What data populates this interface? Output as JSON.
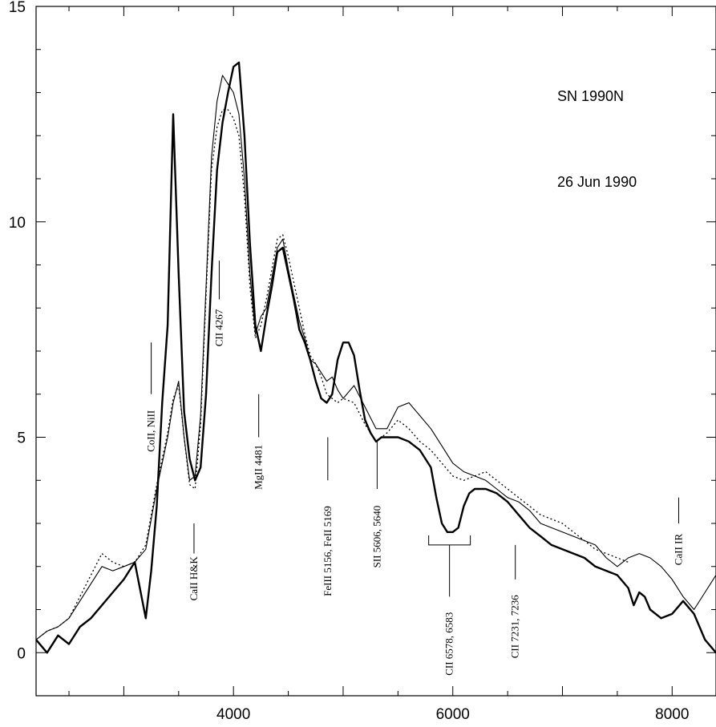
{
  "chart_data": {
    "type": "line",
    "title": "",
    "xlabel": "",
    "ylabel": "",
    "xlim": [
      2200,
      8400
    ],
    "ylim": [
      -1,
      15
    ],
    "x_ticks": [
      4000,
      6000,
      8000
    ],
    "y_ticks": [
      0,
      5,
      10,
      15
    ],
    "grid": false,
    "annotations": [
      "SN 1990N",
      "26 Jun 1990"
    ],
    "series": [
      {
        "style": "thick solid",
        "x": [
          2200,
          2300,
          2400,
          2500,
          2600,
          2700,
          2800,
          2900,
          3000,
          3100,
          3200,
          3250,
          3300,
          3350,
          3400,
          3450,
          3500,
          3550,
          3600,
          3650,
          3700,
          3750,
          3800,
          3850,
          3900,
          3950,
          4000,
          4050,
          4100,
          4150,
          4200,
          4250,
          4300,
          4350,
          4400,
          4450,
          4500,
          4550,
          4600,
          4650,
          4700,
          4750,
          4800,
          4850,
          4900,
          4950,
          5000,
          5050,
          5100,
          5150,
          5200,
          5250,
          5300,
          5350,
          5400,
          5500,
          5600,
          5700,
          5800,
          5850,
          5900,
          5950,
          6000,
          6050,
          6100,
          6150,
          6200,
          6300,
          6400,
          6500,
          6600,
          6700,
          6800,
          6900,
          7000,
          7100,
          7200,
          7300,
          7400,
          7500,
          7600,
          7650,
          7700,
          7750,
          7800,
          7900,
          8000,
          8100,
          8200,
          8300,
          8400
        ],
        "y": [
          0.3,
          0.0,
          0.4,
          0.2,
          0.6,
          0.8,
          1.1,
          1.4,
          1.7,
          2.1,
          0.8,
          1.9,
          3.4,
          5.8,
          7.6,
          12.5,
          8.8,
          5.6,
          4.5,
          4.0,
          4.3,
          6.0,
          8.8,
          11.2,
          12.3,
          13.0,
          13.6,
          13.7,
          12.0,
          9.5,
          7.6,
          7.0,
          7.8,
          8.5,
          9.3,
          9.4,
          8.8,
          8.2,
          7.5,
          7.2,
          6.8,
          6.3,
          5.9,
          5.8,
          6.0,
          6.8,
          7.2,
          7.2,
          6.9,
          6.1,
          5.4,
          5.1,
          4.9,
          5.0,
          5.0,
          5.0,
          4.9,
          4.7,
          4.3,
          3.6,
          3.0,
          2.8,
          2.8,
          2.9,
          3.4,
          3.7,
          3.8,
          3.8,
          3.7,
          3.5,
          3.2,
          2.9,
          2.7,
          2.5,
          2.4,
          2.3,
          2.2,
          2.0,
          1.9,
          1.8,
          1.5,
          1.1,
          1.4,
          1.3,
          1.0,
          0.8,
          0.9,
          1.2,
          0.9,
          0.3,
          0.0
        ]
      },
      {
        "style": "thin solid",
        "x": [
          2200,
          2300,
          2400,
          2500,
          2600,
          2700,
          2800,
          2900,
          3000,
          3100,
          3200,
          3300,
          3400,
          3450,
          3500,
          3550,
          3600,
          3650,
          3700,
          3750,
          3800,
          3850,
          3900,
          3950,
          4000,
          4050,
          4100,
          4150,
          4200,
          4250,
          4300,
          4350,
          4400,
          4450,
          4500,
          4550,
          4600,
          4650,
          4700,
          4750,
          4800,
          4850,
          4900,
          4950,
          5000,
          5100,
          5200,
          5300,
          5400,
          5500,
          5600,
          5700,
          5800,
          5900,
          6000,
          6100,
          6200,
          6300,
          6400,
          6500,
          6600,
          6700,
          6800,
          6900,
          7000,
          7100,
          7200,
          7300,
          7400,
          7500,
          7600,
          7700,
          7800,
          7900,
          8000,
          8100,
          8200,
          8300,
          8400
        ],
        "y": [
          0.3,
          0.5,
          0.6,
          0.8,
          1.2,
          1.6,
          2.0,
          1.9,
          2.0,
          2.1,
          2.4,
          3.8,
          5.0,
          5.8,
          6.3,
          5.0,
          4.0,
          4.1,
          5.5,
          8.5,
          11.5,
          12.8,
          13.4,
          13.2,
          13.0,
          12.5,
          11.0,
          8.8,
          7.4,
          7.8,
          8.0,
          8.7,
          9.4,
          9.6,
          8.9,
          8.3,
          7.7,
          7.3,
          6.8,
          6.7,
          6.5,
          6.3,
          6.4,
          6.1,
          5.9,
          6.2,
          5.7,
          5.2,
          5.2,
          5.7,
          5.8,
          5.5,
          5.2,
          4.8,
          4.4,
          4.2,
          4.1,
          4.0,
          3.8,
          3.6,
          3.5,
          3.3,
          3.0,
          2.9,
          2.8,
          2.7,
          2.6,
          2.5,
          2.2,
          2.0,
          2.2,
          2.3,
          2.2,
          2.0,
          1.7,
          1.3,
          1.0,
          1.4,
          1.8
        ]
      },
      {
        "style": "dotted",
        "x": [
          2200,
          2300,
          2400,
          2500,
          2600,
          2700,
          2800,
          2900,
          3000,
          3100,
          3200,
          3300,
          3400,
          3450,
          3500,
          3550,
          3600,
          3650,
          3700,
          3750,
          3800,
          3850,
          3900,
          3950,
          4000,
          4050,
          4100,
          4150,
          4200,
          4250,
          4300,
          4350,
          4400,
          4450,
          4500,
          4550,
          4600,
          4650,
          4700,
          4750,
          4800,
          4850,
          4900,
          4950,
          5000,
          5100,
          5200,
          5300,
          5400,
          5500,
          5600,
          5700,
          5800,
          5900,
          6000,
          6100,
          6200,
          6300,
          6400,
          6500,
          6600,
          6700,
          6800,
          6900,
          7000,
          7100,
          7200,
          7300,
          7400,
          7500,
          7600
        ],
        "y": [
          0.3,
          0.5,
          0.6,
          0.8,
          1.3,
          1.8,
          2.3,
          2.1,
          2.0,
          2.1,
          2.5,
          3.9,
          5.1,
          5.9,
          6.2,
          5.0,
          3.9,
          3.8,
          5.3,
          8.3,
          11.2,
          12.2,
          12.6,
          12.6,
          12.4,
          12.0,
          10.6,
          8.5,
          7.3,
          7.6,
          8.2,
          8.9,
          9.6,
          9.7,
          9.2,
          8.6,
          8.0,
          7.4,
          6.9,
          6.7,
          6.4,
          6.0,
          5.9,
          5.8,
          5.9,
          5.8,
          5.3,
          4.9,
          5.1,
          5.4,
          5.2,
          4.9,
          4.7,
          4.4,
          4.1,
          4.0,
          4.1,
          4.2,
          4.0,
          3.8,
          3.6,
          3.4,
          3.2,
          3.1,
          3.0,
          2.8,
          2.6,
          2.4,
          2.3,
          2.2,
          2.1
        ]
      }
    ],
    "line_ids": [
      {
        "label": "CoII, NiII",
        "x": 3250,
        "y_top": 7.2,
        "y_bottom": 6.0
      },
      {
        "label": "CII 4267",
        "x": 3870,
        "y_top": 9.1,
        "y_bottom": 8.2
      },
      {
        "label": "MgII 4481",
        "x": 4230,
        "y_top": 6.0,
        "y_bottom": 5.0
      },
      {
        "label": "FeIII 5156, FeII 5169",
        "x": 4860,
        "y_top": 5.0,
        "y_bottom": 4.0
      },
      {
        "label": "SII 5606, 5640",
        "x": 5310,
        "y_top": 4.9,
        "y_bottom": 3.8
      },
      {
        "label": "CaII H&K",
        "x": 3640,
        "y_top": 3.0,
        "y_bottom": 2.3
      },
      {
        "label": "CII 6578, 6583",
        "x": 5970,
        "y_top": 2.5,
        "y_bottom": 1.3,
        "bracket": [
          5780,
          6160
        ]
      },
      {
        "label": "CII 7231, 7236",
        "x": 6570,
        "y_top": 2.5,
        "y_bottom": 1.7
      },
      {
        "label": "CaII IR",
        "x": 8060,
        "y_top": 3.6,
        "y_bottom": 3.0
      }
    ]
  }
}
